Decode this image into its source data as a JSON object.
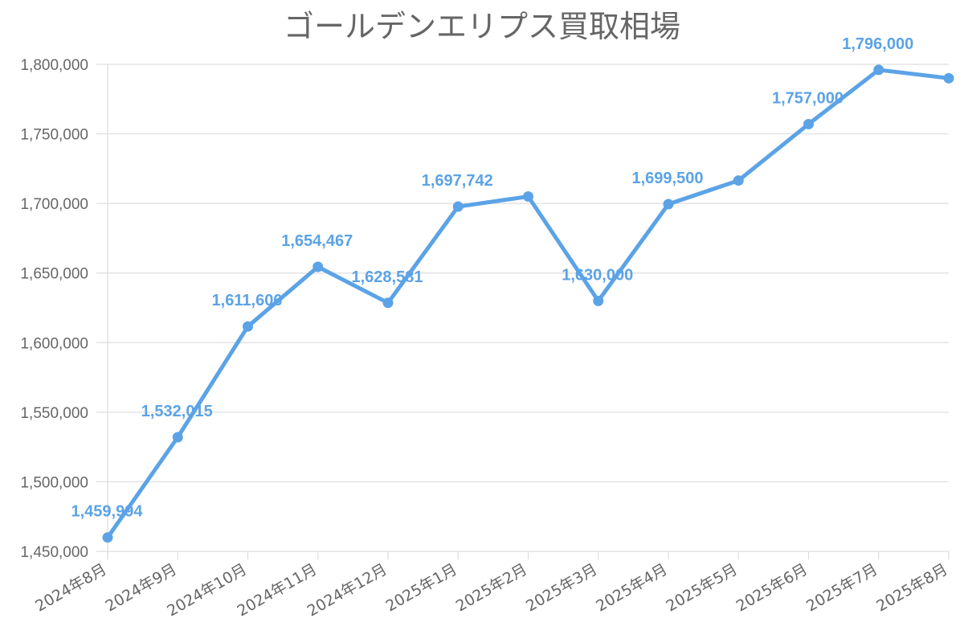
{
  "chart_data": {
    "type": "line",
    "title": "ゴールデンエリプス買取相場",
    "categories": [
      "2024年8月",
      "2024年9月",
      "2024年10月",
      "2024年11月",
      "2024年12月",
      "2025年1月",
      "2025年2月",
      "2025年3月",
      "2025年4月",
      "2025年5月",
      "2025年6月",
      "2025年7月",
      "2025年8月"
    ],
    "series": [
      {
        "values": [
          1459994,
          1532015,
          1611606,
          1654467,
          1628581,
          1697742,
          1705000,
          1630000,
          1699500,
          1716500,
          1757000,
          1796000,
          1790000
        ],
        "labels": [
          "1,459,994",
          "1,532,015",
          "1,611,606",
          "1,654,467",
          "1,628,581",
          "1,697,742",
          "",
          "1,630,000",
          "1,699,500",
          "",
          "1,757,000",
          "1,796,000",
          ""
        ],
        "color": "#5ba3e6"
      }
    ],
    "ylim": [
      1450000,
      1800000
    ],
    "yticks": [
      1450000,
      1500000,
      1550000,
      1600000,
      1650000,
      1700000,
      1750000,
      1800000
    ],
    "ytick_labels": [
      "1,450,000",
      "1,500,000",
      "1,550,000",
      "1,600,000",
      "1,650,000",
      "1,700,000",
      "1,750,000",
      "1,800,000"
    ],
    "grid": true,
    "xlabel": "",
    "ylabel": ""
  }
}
